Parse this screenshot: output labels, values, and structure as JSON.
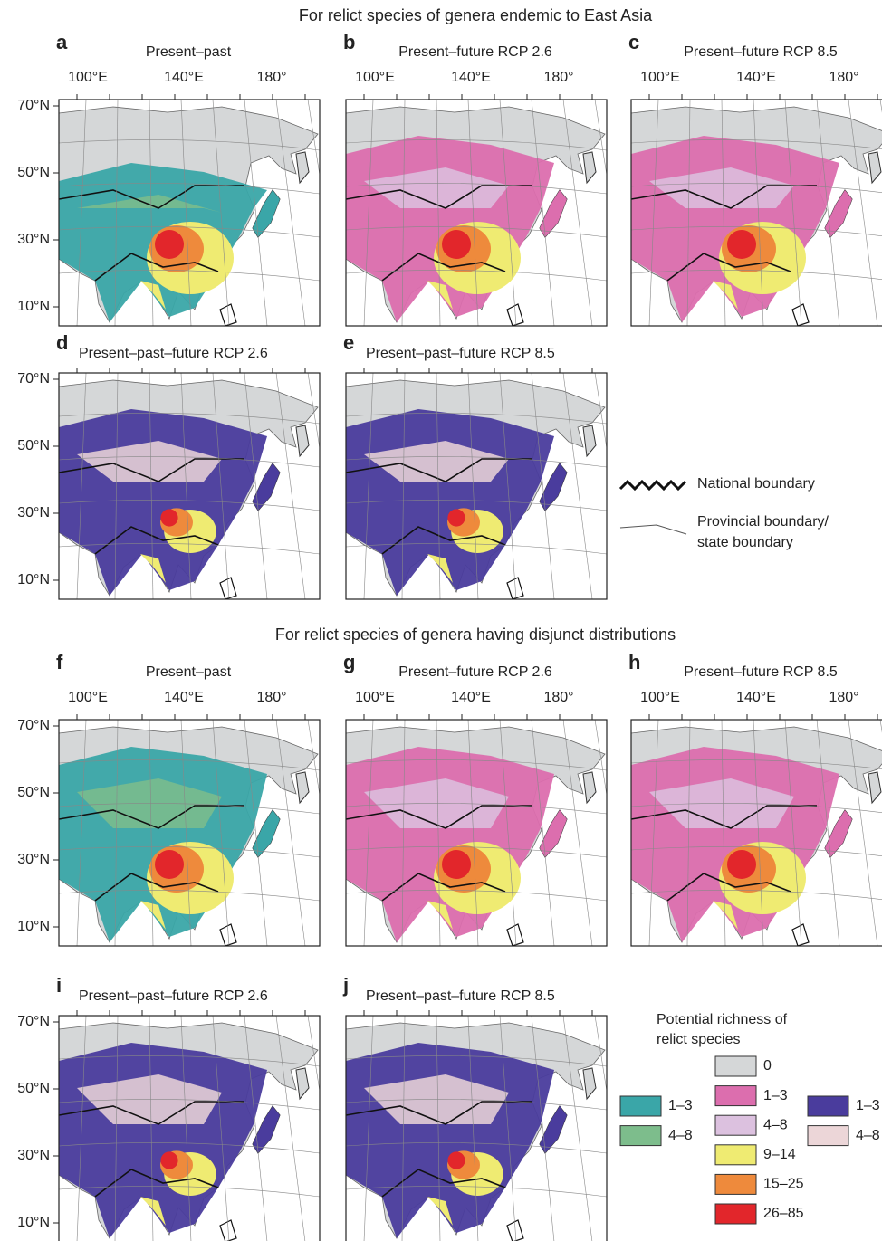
{
  "sections": [
    {
      "title": "For relict species of genera endemic to East Asia",
      "panels": [
        {
          "letter": "a",
          "title": "Present–past"
        },
        {
          "letter": "b",
          "title": "Present–future RCP 2.6"
        },
        {
          "letter": "c",
          "title": "Present–future RCP 8.5"
        },
        {
          "letter": "d",
          "title": "Present–past–future RCP 2.6"
        },
        {
          "letter": "e",
          "title": "Present–past–future RCP 8.5"
        }
      ]
    },
    {
      "title": "For relict species of genera having disjunct distributions",
      "panels": [
        {
          "letter": "f",
          "title": "Present–past"
        },
        {
          "letter": "g",
          "title": "Present–future RCP 2.6"
        },
        {
          "letter": "h",
          "title": "Present–future RCP 8.5"
        },
        {
          "letter": "i",
          "title": "Present–past–future RCP 2.6"
        },
        {
          "letter": "j",
          "title": "Present–past–future RCP 8.5"
        }
      ]
    }
  ],
  "axes": {
    "x_labels": [
      "100°E",
      "140°E",
      "180°"
    ],
    "y_labels": [
      "70°N",
      "50°N",
      "30°N",
      "10°N"
    ]
  },
  "boundary_legend": {
    "national": "National boundary",
    "provincial": [
      "Provincial boundary/",
      "state boundary"
    ]
  },
  "richness_legend": {
    "title": [
      "Potential richness of",
      "relict species"
    ],
    "columns": [
      [
        {
          "label": "1–3",
          "color": "#3aa6a8"
        },
        {
          "label": "4–8",
          "color": "#7dbd8c"
        }
      ],
      [
        {
          "label": "0",
          "color": "#d5d7d8"
        },
        {
          "label": "1–3",
          "color": "#dc6eae"
        },
        {
          "label": "4–8",
          "color": "#dcc1df"
        },
        {
          "label": "9–14",
          "color": "#efeb72"
        },
        {
          "label": "15–25",
          "color": "#ee8a3c"
        },
        {
          "label": "26–85",
          "color": "#e2262b"
        }
      ],
      [
        {
          "label": "1–3",
          "color": "#4a3c9d"
        },
        {
          "label": "4–8",
          "color": "#ecd6d8"
        }
      ]
    ]
  }
}
